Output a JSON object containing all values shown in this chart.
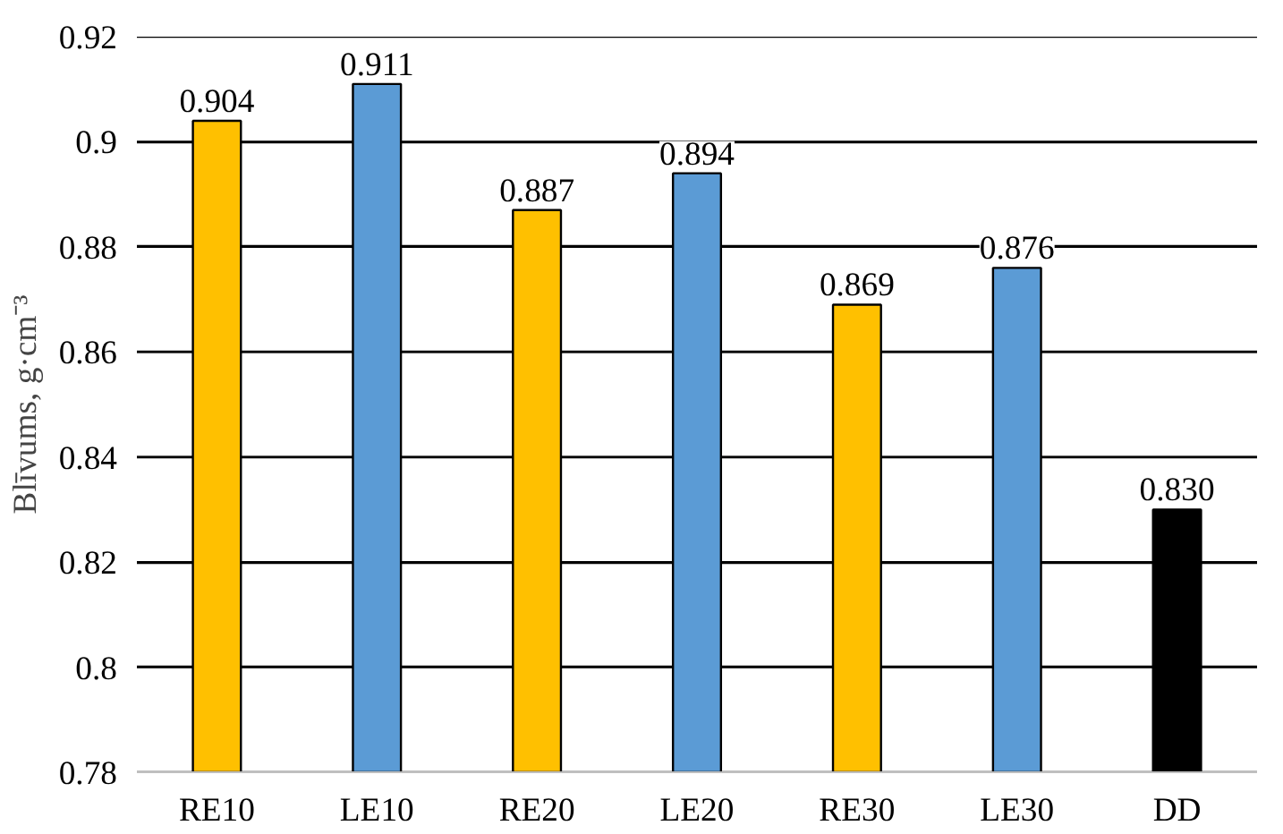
{
  "chart_data": {
    "type": "bar",
    "ylabel": "Blīvums, g·cm⁻³",
    "categories": [
      "RE10",
      "LE10",
      "RE20",
      "LE20",
      "RE30",
      "LE30",
      "DD"
    ],
    "values": [
      0.904,
      0.911,
      0.887,
      0.894,
      0.869,
      0.876,
      0.83
    ],
    "colors": [
      "#ffc000",
      "#5b9bd5",
      "#ffc000",
      "#5b9bd5",
      "#ffc000",
      "#5b9bd5",
      "#000000"
    ],
    "value_labels": [
      "0.904",
      "0.911",
      "0.887",
      "0.894",
      "0.869",
      "0.876",
      "0.830"
    ],
    "ylim": [
      0.78,
      0.92
    ],
    "yticks": [
      0.78,
      0.8,
      0.82,
      0.84,
      0.86,
      0.88,
      0.9,
      0.92
    ],
    "grid": "y"
  }
}
